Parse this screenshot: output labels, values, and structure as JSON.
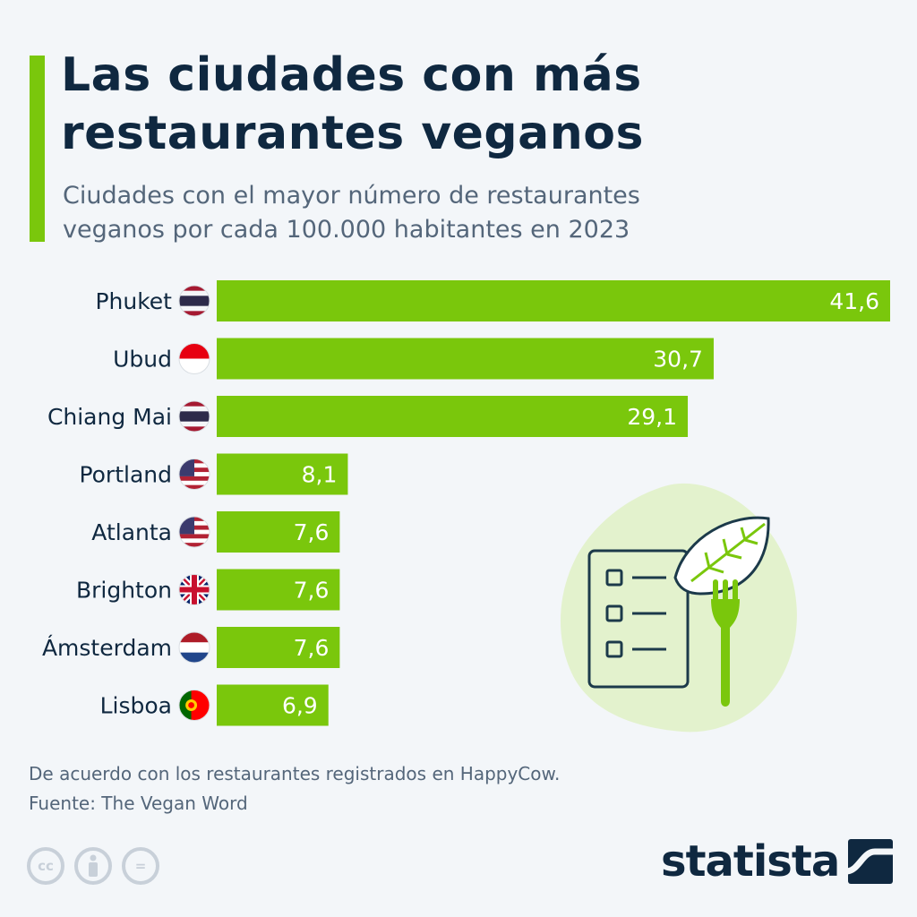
{
  "title": [
    "Las ciudades con más",
    "restaurantes veganos"
  ],
  "subtitle": [
    "Ciudades con el mayor número de restaurantes",
    "veganos por cada 100.000 habitantes en 2023"
  ],
  "colors": {
    "accent": "#7ac70c",
    "bar": "#7ac70c",
    "title": "#0f2840",
    "text": "#54667a"
  },
  "chart_data": {
    "type": "bar",
    "orientation": "horizontal",
    "categories": [
      "Phuket",
      "Ubud",
      "Chiang Mai",
      "Portland",
      "Atlanta",
      "Brighton",
      "Ámsterdam",
      "Lisboa"
    ],
    "flags": [
      "thailand-flag",
      "indonesia-flag",
      "thailand-flag",
      "usa-flag",
      "usa-flag",
      "uk-flag",
      "netherlands-flag",
      "portugal-flag"
    ],
    "values": [
      41.6,
      30.7,
      29.1,
      8.1,
      7.6,
      7.6,
      7.6,
      6.9
    ],
    "value_labels": [
      "41,6",
      "30,7",
      "29,1",
      "8,1",
      "7,6",
      "7,6",
      "7,6",
      "6,9"
    ],
    "xlim": [
      0,
      41.6
    ],
    "grid": false,
    "legend": "none"
  },
  "footnote": [
    "De acuerdo con los restaurantes registrados en HappyCow.",
    "Fuente: The Vegan Word"
  ],
  "license_icons": [
    "cc-icon",
    "attribution-icon",
    "no-derivatives-icon"
  ],
  "license_glyphs": [
    "cc",
    "",
    "="
  ],
  "brand": {
    "name": "statista"
  }
}
